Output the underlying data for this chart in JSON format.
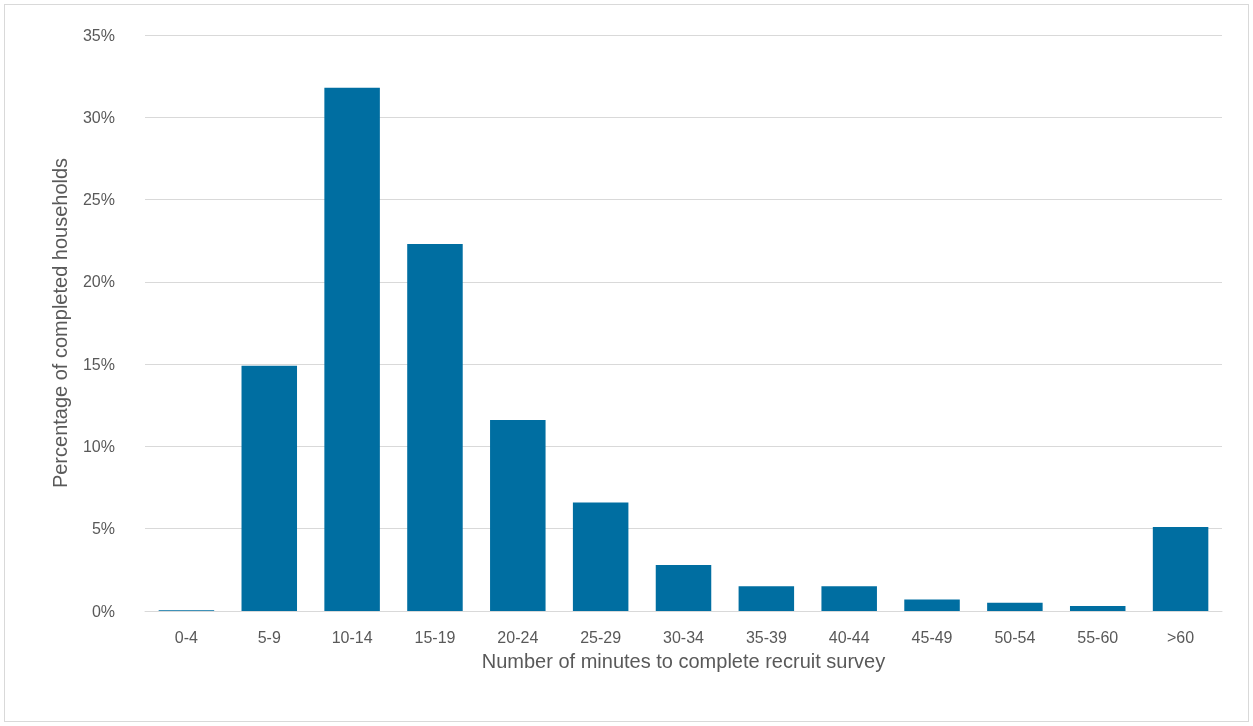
{
  "chart_data": {
    "type": "bar",
    "xlabel": "Number of minutes to complete recruit survey",
    "ylabel": "Percentage of completed households",
    "categories": [
      "0-4",
      "5-9",
      "10-14",
      "15-19",
      "20-24",
      "25-29",
      "30-34",
      "35-39",
      "40-44",
      "45-49",
      "50-54",
      "55-60",
      ">60"
    ],
    "values": [
      0.05,
      14.9,
      31.8,
      22.3,
      11.6,
      6.6,
      2.8,
      1.5,
      1.5,
      0.7,
      0.5,
      0.3,
      5.1
    ],
    "color": "#006ea1",
    "ylim": [
      0,
      35
    ],
    "yticks": [
      {
        "value": 0,
        "label": "0%"
      },
      {
        "value": 5,
        "label": "5%"
      },
      {
        "value": 10,
        "label": "10%"
      },
      {
        "value": 15,
        "label": "15%"
      },
      {
        "value": 20,
        "label": "20%"
      },
      {
        "value": 25,
        "label": "25%"
      },
      {
        "value": 30,
        "label": "30%"
      },
      {
        "value": 35,
        "label": "35%"
      }
    ],
    "grid": "y"
  }
}
